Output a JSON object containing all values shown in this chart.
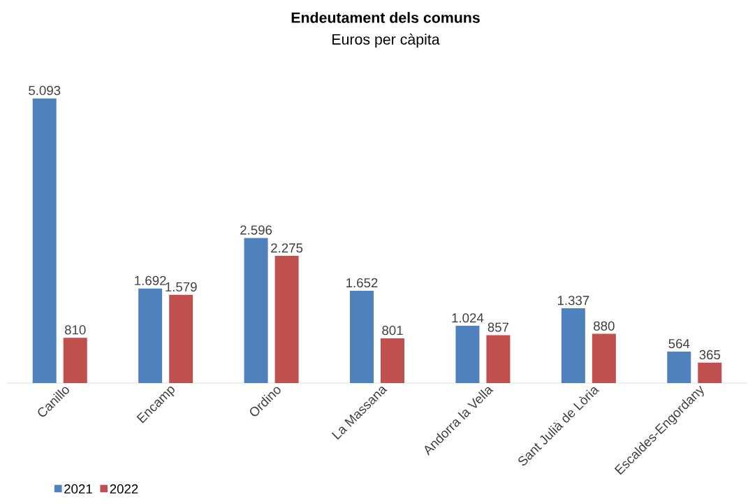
{
  "chart_data": {
    "type": "bar",
    "title": "Endeutament dels comuns",
    "subtitle": "Euros per càpita",
    "categories": [
      "Canillo",
      "Encamp",
      "Ordino",
      "La Massana",
      "Andorra la Vella",
      "Sant Julià de Lòria",
      "Escaldes-Engordany"
    ],
    "series": [
      {
        "name": "2021",
        "color": "#4f81bd",
        "values": [
          5093,
          1692,
          2596,
          1652,
          1024,
          1337,
          564
        ],
        "value_labels": [
          "5.093",
          "1.692",
          "2.596",
          "1.652",
          "1.024",
          "1.337",
          "564"
        ]
      },
      {
        "name": "2022",
        "color": "#c0504d",
        "values": [
          810,
          1579,
          2275,
          801,
          857,
          880,
          365
        ],
        "value_labels": [
          "810",
          "1.579",
          "2.275",
          "801",
          "857",
          "880",
          "365"
        ]
      }
    ],
    "legend": "bottom left"
  }
}
